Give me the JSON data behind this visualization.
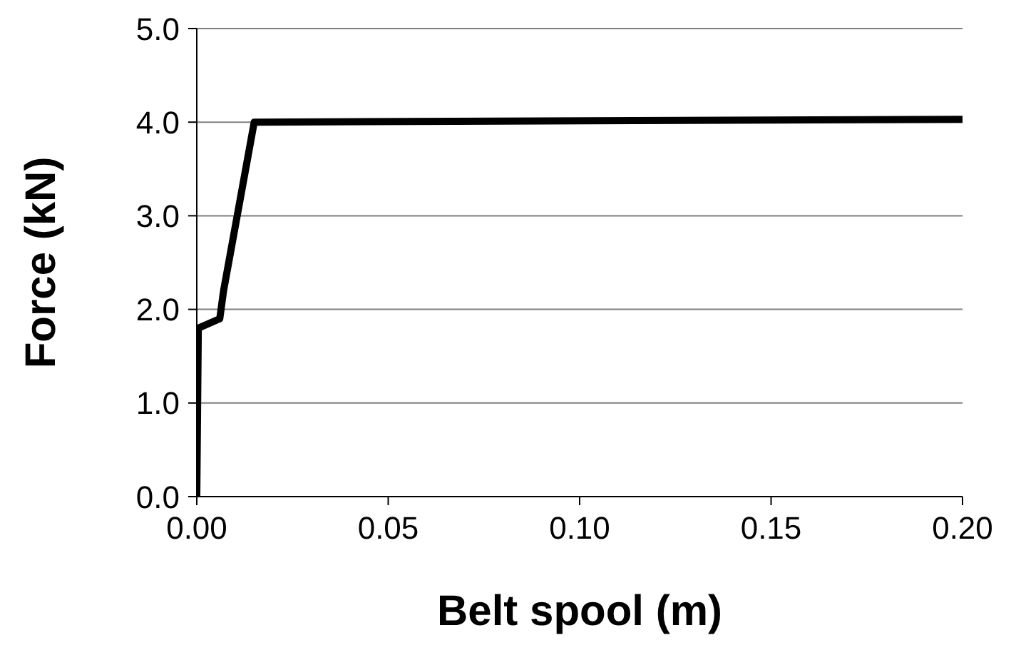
{
  "chart_data": {
    "type": "line",
    "xlabel": "Belt spool (m)",
    "ylabel": "Force (kN)",
    "x": [
      0,
      0.0004,
      0.006,
      0.007,
      0.015,
      0.2
    ],
    "series": [
      {
        "color": "#000000",
        "values": [
          0,
          1.8,
          1.9,
          2.2,
          4.0,
          4.03
        ]
      }
    ],
    "xlim": [
      0,
      0.2
    ],
    "xticks": [
      {
        "value": 0,
        "label": "0.00"
      },
      {
        "value": 0.05,
        "label": "0.05"
      },
      {
        "value": 0.1,
        "label": "0.10"
      },
      {
        "value": 0.15,
        "label": "0.15"
      },
      {
        "value": 0.2,
        "label": "0.20"
      }
    ],
    "ylim": [
      0,
      5
    ],
    "yticks": [
      {
        "value": 0,
        "label": "0.0"
      },
      {
        "value": 1,
        "label": "1.0"
      },
      {
        "value": 2,
        "label": "2.0"
      },
      {
        "value": 3,
        "label": "3.0"
      },
      {
        "value": 4,
        "label": "4.0"
      },
      {
        "value": 5,
        "label": "5.0"
      }
    ],
    "grid": "y",
    "marker": "none",
    "line_style": "solid"
  }
}
